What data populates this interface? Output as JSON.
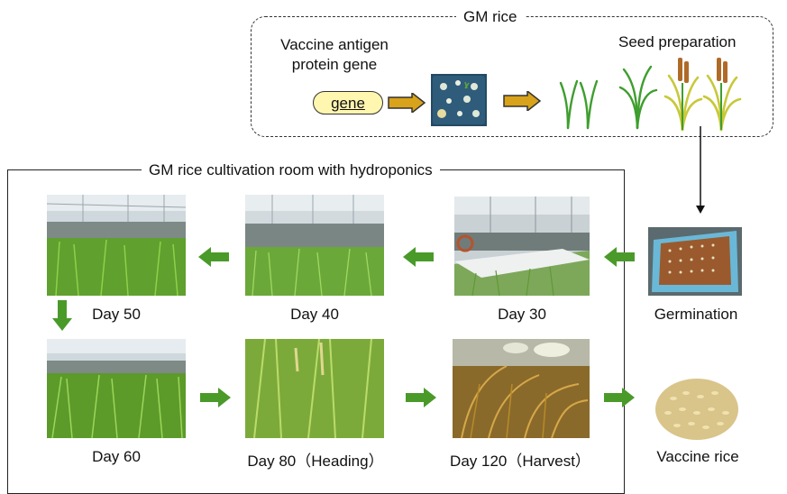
{
  "gm_rice": {
    "title": "GM rice",
    "gene_title": "Vaccine antigen protein gene",
    "gene_line1": "Vaccine antigen",
    "gene_line2": "protein gene",
    "gene_box": "gene",
    "seed_preparation": "Seed preparation"
  },
  "cultivation": {
    "title": "GM rice cultivation room with hydroponics",
    "stages": [
      {
        "label": "Day 30"
      },
      {
        "label": "Day 40"
      },
      {
        "label": "Day 50"
      },
      {
        "label": "Day 60"
      },
      {
        "label": "Day 80（Heading）"
      },
      {
        "label": "Day 120（Harvest）"
      }
    ]
  },
  "germination": "Germination",
  "vaccine_rice": "Vaccine rice",
  "colors": {
    "green_arrow": "#4a9a2a",
    "orange_arrow": "#d8a21a",
    "gene_fill": "#fff6b0",
    "germination_frame": "#6ab8d8"
  }
}
